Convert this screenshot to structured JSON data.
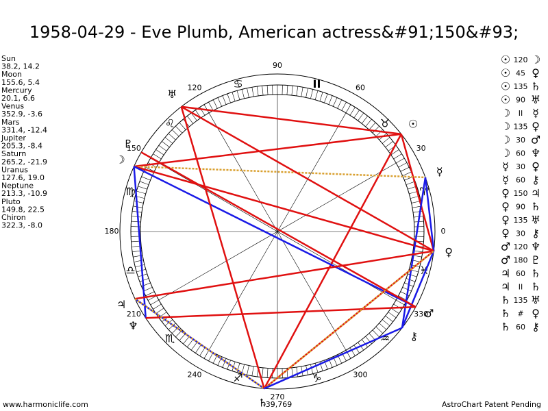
{
  "header": {
    "title": "1958-04-29 - Eve Plumb, American actress&#91;150&#93;"
  },
  "planets": [
    {
      "name": "Sun",
      "glyph": "☉",
      "position": "38.2, 14.2"
    },
    {
      "name": "Moon",
      "glyph": "☽",
      "position": "155.6, 5.4"
    },
    {
      "name": "Mercury",
      "glyph": "☿",
      "position": "20.1, 6.6"
    },
    {
      "name": "Venus",
      "glyph": "♀",
      "position": "352.9, -3.6"
    },
    {
      "name": "Mars",
      "glyph": "♂",
      "position": "331.4, -12.4"
    },
    {
      "name": "Jupiter",
      "glyph": "♃",
      "position": "205.3, -8.4"
    },
    {
      "name": "Saturn",
      "glyph": "♄",
      "position": "265.2, -21.9"
    },
    {
      "name": "Uranus",
      "glyph": "♅",
      "position": "127.6, 19.0"
    },
    {
      "name": "Neptune",
      "glyph": "♆",
      "position": "213.3, -10.9"
    },
    {
      "name": "Pluto",
      "glyph": "♇",
      "position": "149.8, 22.5"
    },
    {
      "name": "Chiron",
      "glyph": "⚷",
      "position": "322.3, -8.0"
    }
  ],
  "signs": [
    "♈",
    "♉",
    "II",
    "♋",
    "♌",
    "♍",
    "♎",
    "♏",
    "♐",
    "♑",
    "♒",
    "♓"
  ],
  "degree_labels": [
    "0",
    "30",
    "60",
    "90",
    "120",
    "150",
    "180",
    "210",
    "240",
    "270",
    "300",
    "330"
  ],
  "aspects": [
    {
      "p1": "☉",
      "aspect": "120",
      "p2": "☽"
    },
    {
      "p1": "☉",
      "aspect": "45",
      "p2": "♀"
    },
    {
      "p1": "☉",
      "aspect": "135",
      "p2": "♄"
    },
    {
      "p1": "☉",
      "aspect": "90",
      "p2": "♅"
    },
    {
      "p1": "☽",
      "aspect": "II",
      "p2": "☿"
    },
    {
      "p1": "☽",
      "aspect": "135",
      "p2": "♀"
    },
    {
      "p1": "☽",
      "aspect": "30",
      "p2": "♂"
    },
    {
      "p1": "☽",
      "aspect": "60",
      "p2": "♆"
    },
    {
      "p1": "☿",
      "aspect": "30",
      "p2": "♀"
    },
    {
      "p1": "☿",
      "aspect": "60",
      "p2": "⚷"
    },
    {
      "p1": "♀",
      "aspect": "150",
      "p2": "♃"
    },
    {
      "p1": "♀",
      "aspect": "90",
      "p2": "♄"
    },
    {
      "p1": "♀",
      "aspect": "135",
      "p2": "♅"
    },
    {
      "p1": "♀",
      "aspect": "30",
      "p2": "⚷"
    },
    {
      "p1": "♂",
      "aspect": "120",
      "p2": "♆"
    },
    {
      "p1": "♂",
      "aspect": "180",
      "p2": "♇"
    },
    {
      "p1": "♃",
      "aspect": "60",
      "p2": "♄"
    },
    {
      "p1": "♃",
      "aspect": "II",
      "p2": "♄"
    },
    {
      "p1": "♄",
      "aspect": "135",
      "p2": "♅"
    },
    {
      "p1": "♄",
      "aspect": "#",
      "p2": "♀"
    },
    {
      "p1": "♄",
      "aspect": "60",
      "p2": "⚷"
    }
  ],
  "bottom_value": "-39,769",
  "footer": {
    "left": "www.harmoniclife.com",
    "right": "AstroChart Patent Pending"
  }
}
